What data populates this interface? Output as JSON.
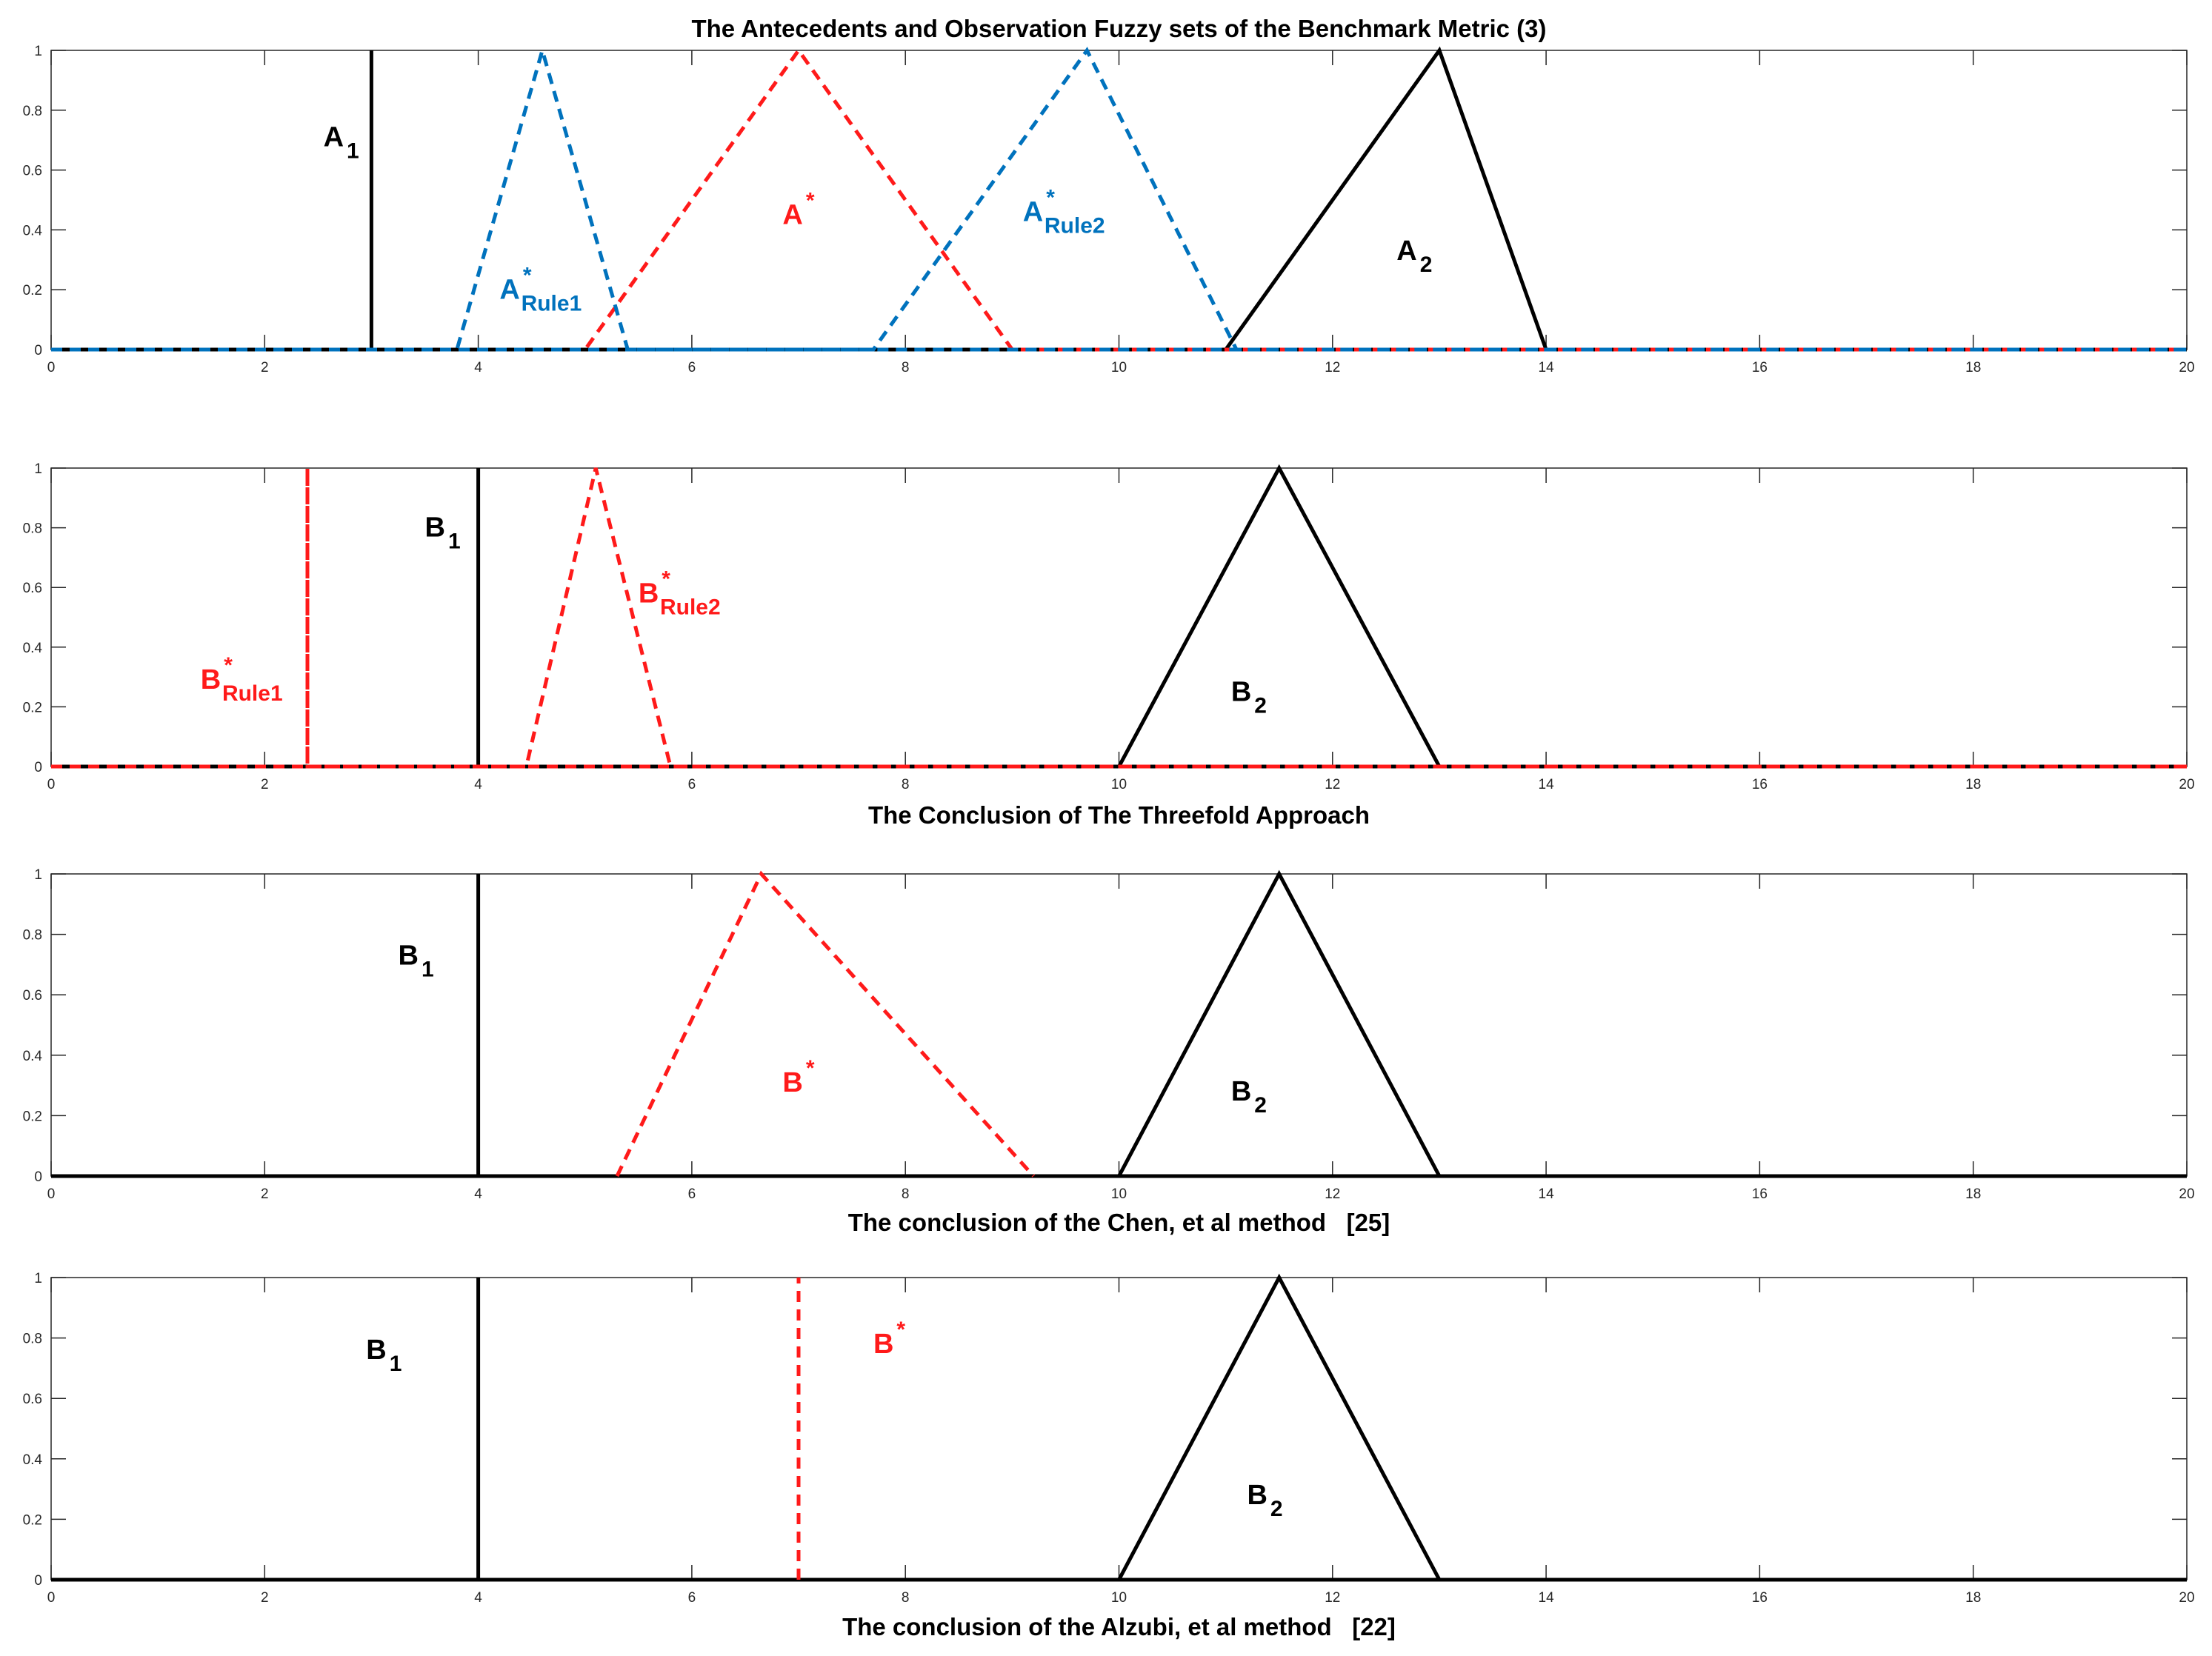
{
  "figure": {
    "title": "The Antecedents and Observation Fuzzy sets of the Benchmark Metric (3)",
    "colors": {
      "black": "#000000",
      "red": "#ff1a1a",
      "blue": "#0072bd",
      "axis": "#262626"
    }
  },
  "chart_data": [
    {
      "type": "line",
      "title": "The Antecedents and Observation Fuzzy sets of the Benchmark Metric (3)",
      "xlabel": "",
      "xlim": [
        0,
        20
      ],
      "ylim": [
        0,
        1
      ],
      "xticks": [
        0,
        2,
        4,
        6,
        8,
        10,
        12,
        14,
        16,
        18,
        20
      ],
      "yticks": [
        0,
        0.2,
        0.4,
        0.6,
        0.8,
        1
      ],
      "series": [
        {
          "name": "A1",
          "color": "#000000",
          "style": "solid",
          "x": [
            0,
            3,
            3,
            3,
            20
          ],
          "y": [
            0,
            0,
            1,
            0,
            0
          ]
        },
        {
          "name": "A2",
          "color": "#000000",
          "style": "solid",
          "x": [
            0,
            11,
            13,
            14,
            20
          ],
          "y": [
            0,
            0,
            1,
            0,
            0
          ]
        },
        {
          "name": "A*",
          "color": "#ff1a1a",
          "style": "dashed",
          "x": [
            0,
            5,
            7,
            9,
            20
          ],
          "y": [
            0,
            0,
            1,
            0,
            0
          ]
        },
        {
          "name": "A*Rule1",
          "color": "#0072bd",
          "style": "dashed",
          "x": [
            0,
            3.8,
            4.6,
            5.4,
            20
          ],
          "y": [
            0,
            0,
            1,
            0,
            0
          ]
        },
        {
          "name": "A*Rule2",
          "color": "#0072bd",
          "style": "dashed",
          "x": [
            0,
            7.7,
            9.7,
            11.1,
            20
          ],
          "y": [
            0,
            0,
            1,
            0,
            0
          ]
        }
      ],
      "annotations": [
        {
          "base": "A",
          "sub": "1",
          "sup": "",
          "color": "#000000",
          "x": 2.55,
          "y": 0.68
        },
        {
          "base": "A",
          "sub": "Rule1",
          "sup": "*",
          "color": "#0072bd",
          "x": 4.2,
          "y": 0.17
        },
        {
          "base": "A",
          "sub": "",
          "sup": "*",
          "color": "#ff1a1a",
          "x": 6.85,
          "y": 0.42
        },
        {
          "base": "A",
          "sub": "Rule2",
          "sup": "*",
          "color": "#0072bd",
          "x": 9.1,
          "y": 0.43
        },
        {
          "base": "A",
          "sub": "2",
          "sup": "",
          "color": "#000000",
          "x": 12.6,
          "y": 0.3
        }
      ]
    },
    {
      "type": "line",
      "title": "",
      "xlabel": "The Conclusion of The Threefold Approach",
      "xlim": [
        0,
        20
      ],
      "ylim": [
        0,
        1
      ],
      "xticks": [
        0,
        2,
        4,
        6,
        8,
        10,
        12,
        14,
        16,
        18,
        20
      ],
      "yticks": [
        0,
        0.2,
        0.4,
        0.6,
        0.8,
        1
      ],
      "series": [
        {
          "name": "B1",
          "color": "#000000",
          "style": "solid",
          "x": [
            0,
            4,
            4,
            4,
            20
          ],
          "y": [
            0,
            0,
            1,
            0,
            0
          ]
        },
        {
          "name": "B2",
          "color": "#000000",
          "style": "solid",
          "x": [
            0,
            10,
            11.5,
            13,
            20
          ],
          "y": [
            0,
            0,
            1,
            0,
            0
          ]
        },
        {
          "name": "B*Rule1",
          "color": "#ff1a1a",
          "style": "dashed",
          "x": [
            0,
            2.4,
            2.4,
            2.4,
            20
          ],
          "y": [
            0,
            0,
            1,
            0,
            0
          ]
        },
        {
          "name": "B*Rule2",
          "color": "#ff1a1a",
          "style": "dashed",
          "x": [
            0,
            4.45,
            5.1,
            5.8,
            20
          ],
          "y": [
            0,
            0,
            1,
            0,
            0
          ]
        }
      ],
      "annotations": [
        {
          "base": "B",
          "sub": "1",
          "sup": "",
          "color": "#000000",
          "x": 3.5,
          "y": 0.77
        },
        {
          "base": "B",
          "sub": "Rule2",
          "sup": "*",
          "color": "#ff1a1a",
          "x": 5.5,
          "y": 0.55
        },
        {
          "base": "B",
          "sub": "Rule1",
          "sup": "*",
          "color": "#ff1a1a",
          "x": 1.4,
          "y": 0.26
        },
        {
          "base": "B",
          "sub": "2",
          "sup": "",
          "color": "#000000",
          "x": 11.05,
          "y": 0.22
        }
      ]
    },
    {
      "type": "line",
      "title": "",
      "xlabel": "The conclusion of the Chen, et al method   [25]",
      "xlim": [
        0,
        20
      ],
      "ylim": [
        0,
        1
      ],
      "xticks": [
        0,
        2,
        4,
        6,
        8,
        10,
        12,
        14,
        16,
        18,
        20
      ],
      "yticks": [
        0,
        0.2,
        0.4,
        0.6,
        0.8,
        1
      ],
      "series": [
        {
          "name": "B1",
          "color": "#000000",
          "style": "solid",
          "x": [
            0,
            4,
            4,
            4,
            20
          ],
          "y": [
            0,
            0,
            1,
            0,
            0
          ]
        },
        {
          "name": "B2",
          "color": "#000000",
          "style": "solid",
          "x": [
            0,
            10,
            11.5,
            13,
            20
          ],
          "y": [
            0,
            0,
            1,
            0,
            0
          ]
        },
        {
          "name": "B*",
          "color": "#ff1a1a",
          "style": "dashed",
          "x": [
            5.3,
            6.65,
            9.2
          ],
          "y": [
            0,
            1,
            0
          ]
        }
      ],
      "annotations": [
        {
          "base": "B",
          "sub": "1",
          "sup": "",
          "color": "#000000",
          "x": 3.25,
          "y": 0.7
        },
        {
          "base": "B",
          "sub": "",
          "sup": "*",
          "color": "#ff1a1a",
          "x": 6.85,
          "y": 0.28
        },
        {
          "base": "B",
          "sub": "2",
          "sup": "",
          "color": "#000000",
          "x": 11.05,
          "y": 0.25
        }
      ]
    },
    {
      "type": "line",
      "title": "",
      "xlabel": "The conclusion of the Alzubi, et al method   [22]",
      "xlim": [
        0,
        20
      ],
      "ylim": [
        0,
        1
      ],
      "xticks": [
        0,
        2,
        4,
        6,
        8,
        10,
        12,
        14,
        16,
        18,
        20
      ],
      "yticks": [
        0,
        0.2,
        0.4,
        0.6,
        0.8,
        1
      ],
      "series": [
        {
          "name": "B1",
          "color": "#000000",
          "style": "solid",
          "x": [
            0,
            4,
            4,
            4,
            20
          ],
          "y": [
            0,
            0,
            1,
            0,
            0
          ]
        },
        {
          "name": "B2",
          "color": "#000000",
          "style": "solid",
          "x": [
            0,
            10,
            11.5,
            13,
            20
          ],
          "y": [
            0,
            0,
            1,
            0,
            0
          ]
        },
        {
          "name": "B*",
          "color": "#ff1a1a",
          "style": "dashed",
          "x": [
            7,
            7
          ],
          "y": [
            0,
            1
          ]
        }
      ],
      "annotations": [
        {
          "base": "B",
          "sub": "1",
          "sup": "",
          "color": "#000000",
          "x": 2.95,
          "y": 0.73
        },
        {
          "base": "B",
          "sub": "",
          "sup": "*",
          "color": "#ff1a1a",
          "x": 7.7,
          "y": 0.75
        },
        {
          "base": "B",
          "sub": "2",
          "sup": "",
          "color": "#000000",
          "x": 11.2,
          "y": 0.25
        }
      ]
    }
  ]
}
